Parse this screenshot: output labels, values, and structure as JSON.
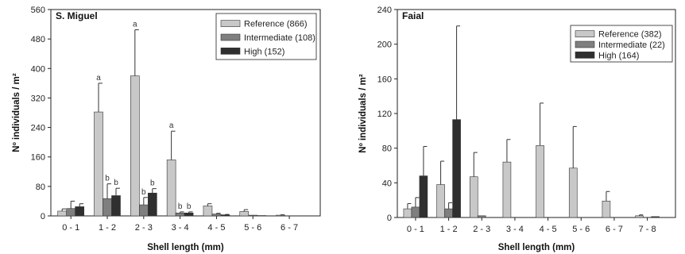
{
  "colors": {
    "reference": "#c8c8c8",
    "intermediate": "#7f7f7f",
    "high": "#2f2f2f",
    "axis": "#222222"
  },
  "chart_data": [
    {
      "type": "bar",
      "title": "S. Miguel",
      "xlabel": "Shell length (mm)",
      "ylabel": "Nº individuals / m²",
      "ylim": [
        0,
        560
      ],
      "yticks": [
        0,
        80,
        160,
        240,
        320,
        400,
        480,
        560
      ],
      "categories": [
        "0 - 1",
        "1 - 2",
        "2 - 3",
        "3 - 4",
        "4 - 5",
        "5 - 6",
        "6 - 7"
      ],
      "legend_position": "top-right",
      "series": [
        {
          "name": "Reference (866)",
          "values": [
            13,
            282,
            380,
            152,
            27,
            12,
            2
          ],
          "errors": [
            6,
            78,
            125,
            78,
            6,
            5,
            1
          ],
          "sig": [
            "",
            "a",
            "a",
            "a",
            "",
            "",
            ""
          ]
        },
        {
          "name": "Intermediate (108)",
          "values": [
            20,
            47,
            30,
            8,
            5,
            2,
            0
          ],
          "errors": [
            20,
            40,
            20,
            3,
            2,
            0,
            0
          ],
          "sig": [
            "",
            "b",
            "b",
            "b",
            "",
            "",
            ""
          ]
        },
        {
          "name": "High (152)",
          "values": [
            25,
            55,
            62,
            8,
            3,
            1,
            0
          ],
          "errors": [
            8,
            20,
            12,
            3,
            1,
            0,
            0
          ],
          "sig": [
            "",
            "b",
            "b",
            "b",
            "",
            "",
            ""
          ]
        }
      ]
    },
    {
      "type": "bar",
      "title": "Faial",
      "xlabel": "Shell length (mm)",
      "ylabel": "Nº individuals / m²",
      "ylim": [
        0,
        240
      ],
      "yticks": [
        0,
        40,
        80,
        120,
        160,
        200,
        240
      ],
      "categories": [
        "0 - 1",
        "1 - 2",
        "2 - 3",
        "3 - 4",
        "4 - 5",
        "5 - 6",
        "6 - 7",
        "7 - 8"
      ],
      "legend_position": "top-right",
      "series": [
        {
          "name": "Reference (382)",
          "values": [
            10,
            38,
            47,
            64,
            83,
            57,
            19,
            2
          ],
          "errors": [
            6,
            27,
            28,
            26,
            49,
            48,
            11,
            1
          ],
          "sig": [
            "",
            "",
            "",
            "",
            "",
            "",
            "",
            ""
          ]
        },
        {
          "name": "Intermediate (22)",
          "values": [
            12,
            10,
            2,
            0,
            0,
            0,
            0,
            0
          ],
          "errors": [
            11,
            7,
            0,
            0,
            0,
            0,
            0,
            0
          ],
          "sig": [
            "",
            "",
            "",
            "",
            "",
            "",
            "",
            ""
          ]
        },
        {
          "name": "High (164)",
          "values": [
            48,
            113,
            0,
            0,
            0,
            0,
            0,
            1
          ],
          "errors": [
            34,
            108,
            0,
            0,
            0,
            0,
            0,
            0
          ],
          "sig": [
            "",
            "",
            "",
            "",
            "",
            "",
            "",
            ""
          ]
        }
      ]
    }
  ]
}
